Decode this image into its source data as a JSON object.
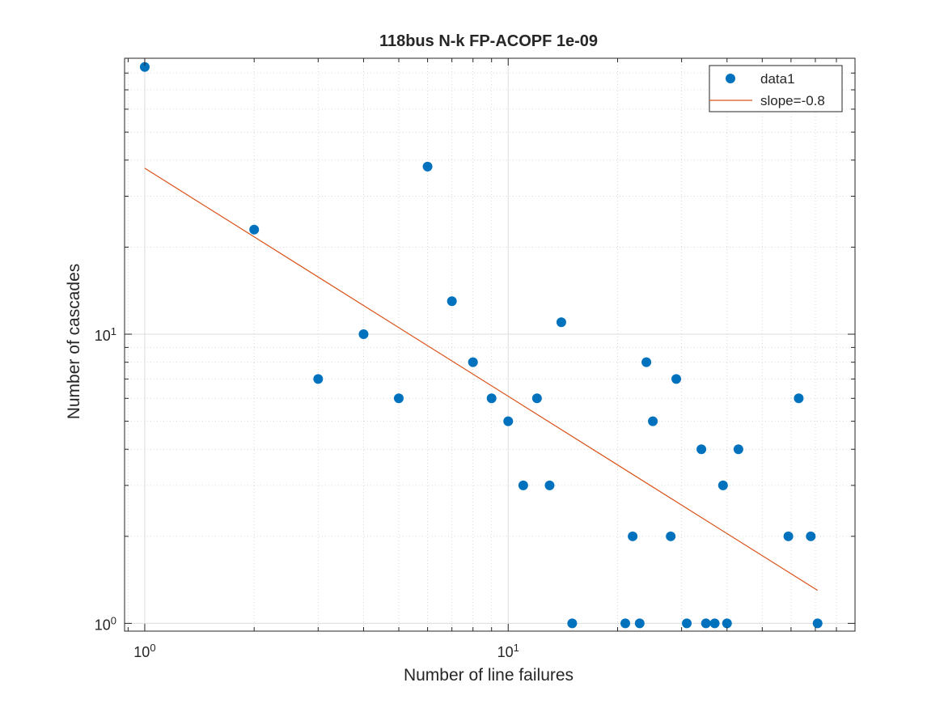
{
  "chart_data": {
    "type": "scatter",
    "title": "118bus N-k FP-ACOPF 1e-09",
    "xlabel": "Number of line failures",
    "ylabel": "Number of cascades",
    "xscale": "log",
    "yscale": "log",
    "xlim": [
      0.88,
      90
    ],
    "ylim": [
      0.94,
      90
    ],
    "grid": true,
    "legend_position": "top-right",
    "x_ticks": [
      {
        "base": "10",
        "exp": "0",
        "value": 1
      },
      {
        "base": "10",
        "exp": "1",
        "value": 10
      }
    ],
    "y_ticks": [
      {
        "base": "10",
        "exp": "0",
        "value": 1
      },
      {
        "base": "10",
        "exp": "1",
        "value": 10
      }
    ],
    "series": [
      {
        "name": "data1",
        "mode": "markers",
        "color": "#0072BD",
        "points": [
          [
            1,
            84
          ],
          [
            2,
            23
          ],
          [
            3,
            7
          ],
          [
            4,
            10
          ],
          [
            5,
            6
          ],
          [
            6,
            38
          ],
          [
            7,
            13
          ],
          [
            8,
            8
          ],
          [
            9,
            6
          ],
          [
            10,
            5
          ],
          [
            11,
            3
          ],
          [
            12,
            6
          ],
          [
            13,
            3
          ],
          [
            14,
            11
          ],
          [
            15,
            1
          ],
          [
            21,
            1
          ],
          [
            22,
            2
          ],
          [
            23,
            1
          ],
          [
            24,
            8
          ],
          [
            25,
            5
          ],
          [
            28,
            2
          ],
          [
            29,
            7
          ],
          [
            31,
            1
          ],
          [
            34,
            4
          ],
          [
            35,
            1
          ],
          [
            37,
            1
          ],
          [
            39,
            3
          ],
          [
            40,
            1
          ],
          [
            43,
            4
          ],
          [
            59,
            2
          ],
          [
            63,
            6
          ],
          [
            68,
            2
          ],
          [
            71,
            1
          ]
        ]
      },
      {
        "name": "slope=-0.8",
        "mode": "line",
        "color": "#D95319",
        "points": [
          [
            1,
            37.5
          ],
          [
            71,
            1.3
          ]
        ]
      }
    ]
  }
}
